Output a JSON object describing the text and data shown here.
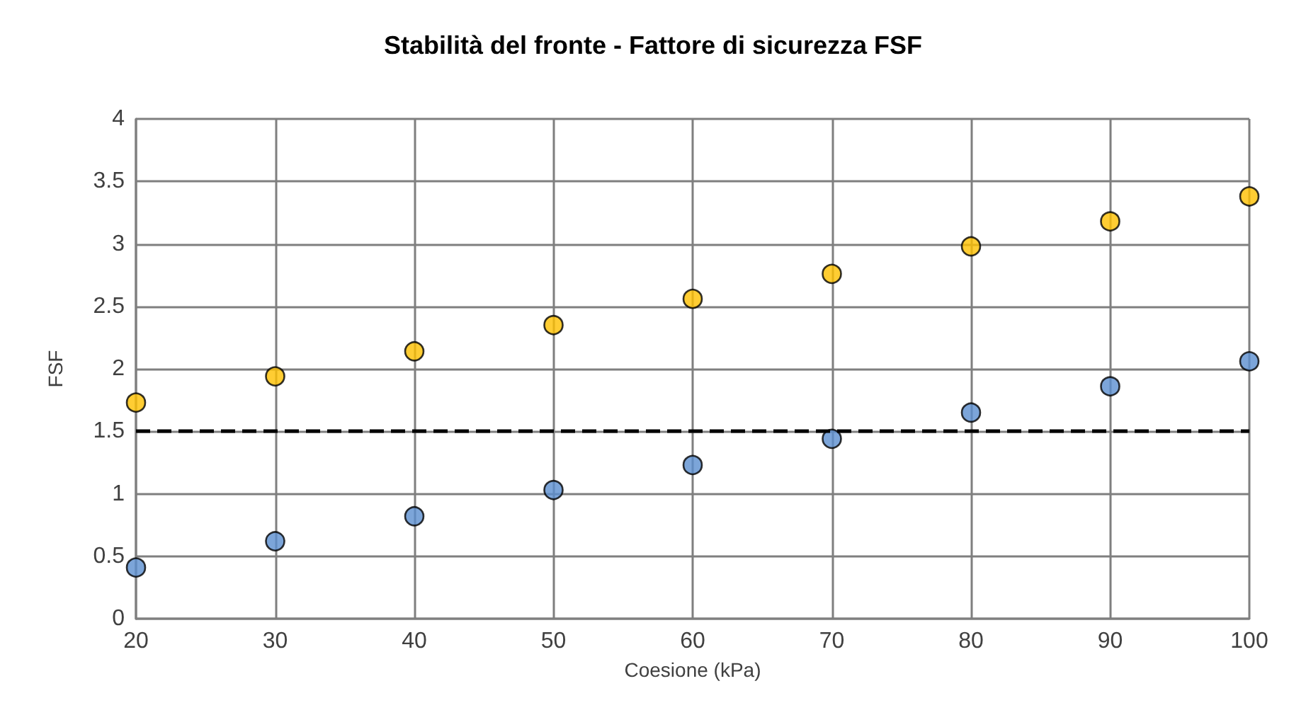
{
  "chart_data": {
    "type": "scatter",
    "title": "Stabilità del fronte - Fattore di sicurezza FSF",
    "xlabel": "Coesione (kPa)",
    "ylabel": "FSF",
    "x": [
      20,
      30,
      40,
      50,
      60,
      70,
      80,
      90,
      100
    ],
    "series": [
      {
        "color": "#ffc000",
        "values": [
          1.73,
          1.94,
          2.14,
          2.35,
          2.56,
          2.76,
          2.98,
          3.18,
          3.38
        ]
      },
      {
        "color": "#5b8fd0",
        "values": [
          0.41,
          0.62,
          0.82,
          1.03,
          1.23,
          1.44,
          1.65,
          1.86,
          2.06
        ]
      }
    ],
    "xlim": [
      20,
      100
    ],
    "xticks": [
      20,
      30,
      40,
      50,
      60,
      70,
      80,
      90,
      100
    ],
    "ylim": [
      0,
      4
    ],
    "yticks": [
      0,
      0.5,
      1,
      1.5,
      2,
      2.5,
      3,
      3.5,
      4
    ],
    "grid": true,
    "marker": "circle",
    "ref_lines": [
      {
        "axis": "y",
        "value": 1.5,
        "color": "#000000",
        "line_style": "dashed"
      }
    ]
  }
}
